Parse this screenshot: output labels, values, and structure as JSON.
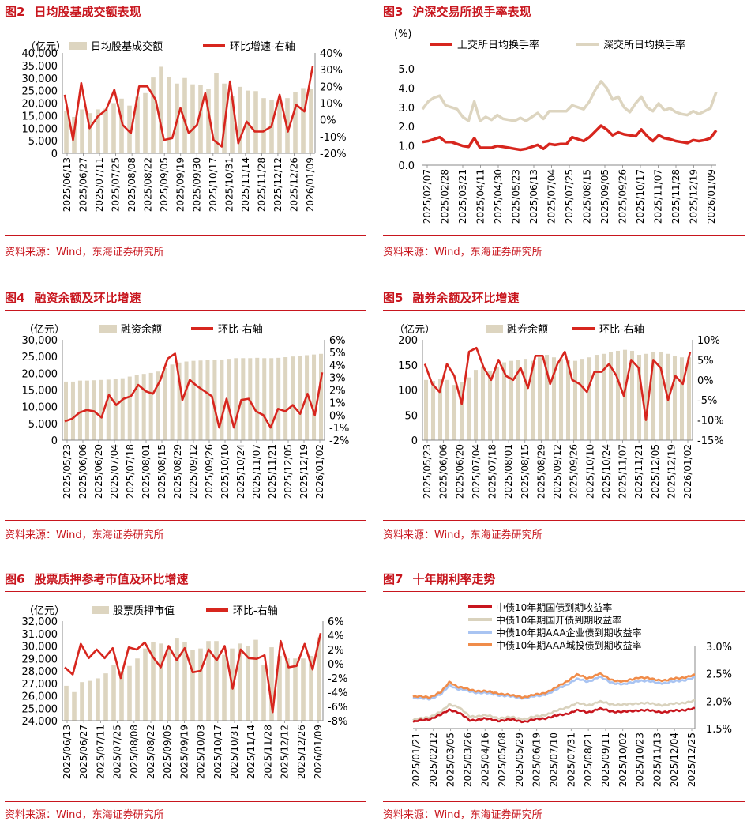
{
  "source_text": "资料来源：Wind，东海证券研究所",
  "colors": {
    "bar": "#ddd5c0",
    "line_red": "#d7261e",
    "line_beige": "#ddd5c0",
    "gov_red": "#c8161e",
    "cdb_beige": "#d9d2bd",
    "corp_blue": "#a9c4f2",
    "city_orange": "#f08c4a",
    "title_red": "#c8161e"
  },
  "chart_data": [
    {
      "id": "fig2",
      "num": "图2",
      "title": "日均股基成交额表现",
      "type": "bar+line",
      "unit_label": "（亿元）",
      "legend": [
        "日均股基成交额",
        "环比增速-右轴"
      ],
      "left_ticks": [
        "40,000",
        "35,000",
        "30,000",
        "25,000",
        "20,000",
        "15,000",
        "10,000",
        "5,000",
        "0"
      ],
      "right_ticks": [
        "40%",
        "30%",
        "20%",
        "10%",
        "0%",
        "-10%",
        "-20%"
      ],
      "ylim": [
        0,
        40000
      ],
      "y2lim": [
        -20,
        40
      ],
      "x_ticks": [
        "2025/06/13",
        "2025/06/27",
        "2025/07/11",
        "2025/07/25",
        "2025/08/08",
        "2025/08/22",
        "2025/09/05",
        "2025/09/19",
        "2025/09/30",
        "2025/10/17",
        "2025/10/31",
        "2025/11/14",
        "2025/11/28",
        "2025/12/12",
        "2025/12/26",
        "2026/01/09"
      ],
      "bars": [
        17000,
        14500,
        17500,
        16000,
        17500,
        17800,
        20000,
        21800,
        19000,
        22500,
        24000,
        30200,
        34500,
        30500,
        27800,
        30000,
        27500,
        27200,
        25800,
        32000,
        27800,
        23000,
        26500,
        25000,
        24800,
        22000,
        21200,
        20800,
        22000,
        24500,
        26000,
        25800
      ],
      "line": [
        15,
        -12,
        22,
        -5,
        2,
        6,
        18,
        -3,
        -8,
        20,
        20,
        12,
        -12,
        -11,
        7,
        -8,
        -3,
        16,
        -12,
        -16,
        23,
        -14,
        -1,
        -7,
        -7,
        -4,
        15,
        -7,
        9,
        5,
        32
      ]
    },
    {
      "id": "fig3",
      "num": "图3",
      "title": "沪深交易所换手率表现",
      "type": "line",
      "unit_label": "(%)",
      "legend": [
        "上交所日均换手率",
        "深交所日均换手率"
      ],
      "left_ticks": [
        "5.0",
        "4.0",
        "3.0",
        "2.0",
        "1.0",
        "0.0"
      ],
      "ylim": [
        0,
        5
      ],
      "x_ticks": [
        "2025/02/07",
        "2025/02/28",
        "2025/03/21",
        "2025/04/11",
        "2025/04/30",
        "2025/05/23",
        "2025/06/13",
        "2025/07/04",
        "2025/07/25",
        "2025/08/15",
        "2025/09/05",
        "2025/09/26",
        "2025/10/17",
        "2025/11/07",
        "2025/11/28",
        "2025/12/19",
        "2026/01/09"
      ],
      "series": [
        {
          "name": "上交所日均换手率",
          "values": [
            1.2,
            1.25,
            1.35,
            1.45,
            1.2,
            1.2,
            1.1,
            1.0,
            0.95,
            1.4,
            0.9,
            0.9,
            0.9,
            1.0,
            0.95,
            0.9,
            0.85,
            0.8,
            0.85,
            0.95,
            1.05,
            0.85,
            1.1,
            1.05,
            1.1,
            1.1,
            1.45,
            1.35,
            1.25,
            1.45,
            1.75,
            2.05,
            1.85,
            1.55,
            1.7,
            1.6,
            1.55,
            1.5,
            1.85,
            1.5,
            1.25,
            1.55,
            1.4,
            1.35,
            1.25,
            1.2,
            1.15,
            1.3,
            1.25,
            1.3,
            1.4,
            1.8
          ]
        },
        {
          "name": "深交所日均换手率",
          "values": [
            2.9,
            3.3,
            3.5,
            3.6,
            3.1,
            3.0,
            2.9,
            2.5,
            2.3,
            3.3,
            2.3,
            2.5,
            2.35,
            2.6,
            2.4,
            2.35,
            2.3,
            2.45,
            2.3,
            2.5,
            2.7,
            2.4,
            2.8,
            2.8,
            2.8,
            2.8,
            3.1,
            3.0,
            2.9,
            3.3,
            3.9,
            4.35,
            4.0,
            3.4,
            3.55,
            3.0,
            2.75,
            3.2,
            3.55,
            3.0,
            2.8,
            3.2,
            2.85,
            2.95,
            2.75,
            2.65,
            2.6,
            2.8,
            2.65,
            2.8,
            2.95,
            3.8
          ]
        }
      ]
    },
    {
      "id": "fig4",
      "num": "图4",
      "title": "融资余额及环比增速",
      "type": "bar+line",
      "unit_label": "（亿元）",
      "legend": [
        "融资余额",
        "环比-右轴"
      ],
      "left_ticks": [
        "30,000",
        "25,000",
        "20,000",
        "15,000",
        "10,000",
        "5,000",
        "0"
      ],
      "right_ticks": [
        "6%",
        "5%",
        "4%",
        "3%",
        "2%",
        "1%",
        "0%",
        "-1%",
        "-2%"
      ],
      "ylim": [
        0,
        30000
      ],
      "y2lim": [
        -2,
        6
      ],
      "x_ticks": [
        "2025/05/23",
        "2025/06/06",
        "2025/06/20",
        "2025/07/04",
        "2025/07/18",
        "2025/08/01",
        "2025/08/15",
        "2025/08/29",
        "2025/09/12",
        "2025/09/26",
        "2025/10/10",
        "2025/10/24",
        "2025/11/07",
        "2025/11/21",
        "2025/12/05",
        "2025/12/19",
        "2026/01/02"
      ],
      "bars": [
        17500,
        17500,
        17800,
        17800,
        17900,
        18000,
        18100,
        18300,
        18500,
        19000,
        19400,
        19800,
        20100,
        20500,
        21500,
        22600,
        23200,
        23500,
        23700,
        23800,
        23900,
        24000,
        24100,
        24300,
        24500,
        24500,
        24500,
        24600,
        24500,
        24500,
        24600,
        24800,
        25000,
        25200,
        25400,
        25600,
        25800
      ],
      "line": [
        -0.5,
        -0.3,
        0.2,
        0.4,
        0.3,
        -0.2,
        1.6,
        0.8,
        1.3,
        1.5,
        2.4,
        1.9,
        1.7,
        2.8,
        4.5,
        4.9,
        1.2,
        2.8,
        2.3,
        1.9,
        1.5,
        -1.0,
        1.3,
        -1.0,
        1.2,
        1.3,
        0.3,
        0.0,
        -1.0,
        0.5,
        0.3,
        0.8,
        0.1,
        1.7,
        0.0,
        3.4
      ]
    },
    {
      "id": "fig5",
      "num": "图5",
      "title": "融券余额及环比增速",
      "type": "bar+line",
      "unit_label": "（亿元）",
      "legend": [
        "融券余额",
        "环比-右轴"
      ],
      "left_ticks": [
        "200",
        "150",
        "100",
        "50",
        "0"
      ],
      "right_ticks": [
        "10%",
        "5%",
        "0%",
        "-5%",
        "-10%",
        "-15%"
      ],
      "ylim": [
        0,
        200
      ],
      "y2lim": [
        -15,
        10
      ],
      "x_ticks": [
        "2025/05/23",
        "2025/06/06",
        "2025/06/20",
        "2025/07/04",
        "2025/07/18",
        "2025/08/01",
        "2025/08/15",
        "2025/08/29",
        "2025/09/12",
        "2025/09/26",
        "2025/10/10",
        "2025/10/24",
        "2025/11/07",
        "2025/11/21",
        "2025/12/05",
        "2025/12/19",
        "2026/01/02"
      ],
      "bars": [
        120,
        118,
        122,
        120,
        110,
        115,
        125,
        140,
        145,
        138,
        145,
        155,
        158,
        160,
        162,
        158,
        165,
        170,
        165,
        162,
        160,
        158,
        162,
        165,
        170,
        172,
        175,
        178,
        180,
        178,
        170,
        172,
        175,
        175,
        172,
        168,
        165,
        165
      ],
      "line": [
        4,
        -1,
        -3,
        4,
        1,
        -6,
        7,
        8,
        3,
        0,
        5,
        1,
        0,
        3,
        -2,
        6,
        6,
        -1,
        4,
        7,
        0,
        -1,
        -3,
        2,
        2,
        4,
        1,
        -4,
        5,
        3,
        -10,
        5,
        3,
        -5,
        1,
        -1,
        7
      ]
    },
    {
      "id": "fig6",
      "num": "图6",
      "title": "股票质押参考市值及环比增速",
      "type": "bar+line",
      "unit_label": "（亿元）",
      "legend": [
        "股票质押市值",
        "环比-右轴"
      ],
      "left_ticks": [
        "32,000",
        "31,000",
        "30,000",
        "29,000",
        "28,000",
        "27,000",
        "26,000",
        "25,000",
        "24,000"
      ],
      "right_ticks": [
        "6%",
        "4%",
        "2%",
        "0%",
        "-2%",
        "-4%",
        "-6%",
        "-8%"
      ],
      "ylim": [
        24000,
        32000
      ],
      "y2lim": [
        -8,
        6
      ],
      "x_ticks": [
        "2025/06/13",
        "2025/06/27",
        "2025/07/11",
        "2025/07/25",
        "2025/08/08",
        "2025/08/22",
        "2025/09/05",
        "2025/09/19",
        "2025/10/03",
        "2025/10/17",
        "2025/10/31",
        "2025/11/14",
        "2025/11/28",
        "2025/12/12",
        "2025/12/26",
        "2026/01/09"
      ],
      "bars": [
        26800,
        26300,
        27100,
        27200,
        27400,
        27800,
        28500,
        28000,
        28400,
        29000,
        29800,
        30300,
        30200,
        30000,
        30600,
        30300,
        29700,
        29800,
        30400,
        30400,
        29300,
        29800,
        30200,
        30000,
        30500,
        28500,
        29900,
        29200,
        29000,
        29000,
        29000,
        29200,
        30700
      ],
      "line": [
        -0.5,
        -1.5,
        2.8,
        0.8,
        2.0,
        0.8,
        2.2,
        -2.0,
        2.3,
        2.0,
        3.0,
        1.0,
        -0.5,
        2.5,
        0.5,
        2.2,
        -1.2,
        -1.0,
        2.0,
        0.5,
        2.5,
        -3.5,
        2.0,
        0.8,
        0.7,
        1.2,
        -6.8,
        3.2,
        -0.5,
        -0.3,
        2.8,
        -0.8,
        4.3
      ]
    },
    {
      "id": "fig7",
      "num": "图7",
      "title": "十年期利率走势",
      "type": "line",
      "legend": [
        "中债10年期国债到期收益率",
        "中债10年期国开债到期收益率",
        "中债10年期AAA企业债到期收益率",
        "中债10年期AAA城投债到期收益率"
      ],
      "right_ticks": [
        "3.0%",
        "2.5%",
        "2.0%",
        "1.5%"
      ],
      "ylim": [
        1.5,
        3.0
      ],
      "x_ticks": [
        "2025/01/21",
        "2025/02/12",
        "2025/03/05",
        "2025/03/26",
        "2025/04/16",
        "2025/05/08",
        "2025/05/29",
        "2025/06/19",
        "2025/07/10",
        "2025/07/31",
        "2025/08/21",
        "2025/09/11",
        "2025/10/02",
        "2025/10/23",
        "2025/11/13",
        "2025/12/04",
        "2025/12/25"
      ],
      "series": [
        {
          "name": "中债10年期国债到期收益率",
          "anchors": [
            [
              0,
              1.62
            ],
            [
              6,
              1.68
            ],
            [
              10,
              1.75
            ],
            [
              13,
              1.85
            ],
            [
              16,
              1.8
            ],
            [
              20,
              1.65
            ],
            [
              25,
              1.68
            ],
            [
              30,
              1.65
            ],
            [
              35,
              1.66
            ],
            [
              40,
              1.63
            ],
            [
              45,
              1.68
            ],
            [
              50,
              1.72
            ],
            [
              55,
              1.78
            ],
            [
              58,
              1.83
            ],
            [
              62,
              1.8
            ],
            [
              66,
              1.86
            ],
            [
              70,
              1.82
            ],
            [
              75,
              1.8
            ],
            [
              80,
              1.84
            ],
            [
              85,
              1.82
            ],
            [
              90,
              1.8
            ],
            [
              95,
              1.84
            ],
            [
              100,
              1.86
            ]
          ]
        },
        {
          "name": "中债10年期国开债到期收益率",
          "anchors": [
            [
              0,
              1.65
            ],
            [
              6,
              1.72
            ],
            [
              10,
              1.8
            ],
            [
              13,
              1.95
            ],
            [
              16,
              1.9
            ],
            [
              20,
              1.72
            ],
            [
              25,
              1.74
            ],
            [
              30,
              1.7
            ],
            [
              35,
              1.7
            ],
            [
              40,
              1.68
            ],
            [
              45,
              1.73
            ],
            [
              50,
              1.8
            ],
            [
              55,
              1.9
            ],
            [
              58,
              1.96
            ],
            [
              62,
              1.93
            ],
            [
              66,
              1.99
            ],
            [
              70,
              1.95
            ],
            [
              75,
              1.93
            ],
            [
              80,
              1.97
            ],
            [
              85,
              1.95
            ],
            [
              90,
              1.93
            ],
            [
              95,
              1.97
            ],
            [
              100,
              2.0
            ]
          ]
        },
        {
          "name": "中债10年期AAA企业债到期收益率",
          "anchors": [
            [
              0,
              2.05
            ],
            [
              6,
              2.05
            ],
            [
              10,
              2.12
            ],
            [
              13,
              2.3
            ],
            [
              16,
              2.22
            ],
            [
              20,
              2.18
            ],
            [
              25,
              2.15
            ],
            [
              30,
              2.12
            ],
            [
              35,
              2.08
            ],
            [
              40,
              2.06
            ],
            [
              45,
              2.1
            ],
            [
              50,
              2.18
            ],
            [
              55,
              2.32
            ],
            [
              58,
              2.4
            ],
            [
              62,
              2.36
            ],
            [
              66,
              2.44
            ],
            [
              70,
              2.35
            ],
            [
              75,
              2.3
            ],
            [
              80,
              2.38
            ],
            [
              85,
              2.35
            ],
            [
              90,
              2.33
            ],
            [
              95,
              2.38
            ],
            [
              100,
              2.42
            ]
          ]
        },
        {
          "name": "中债10年期AAA城投债到期收益率",
          "anchors": [
            [
              0,
              2.08
            ],
            [
              6,
              2.08
            ],
            [
              10,
              2.16
            ],
            [
              13,
              2.36
            ],
            [
              16,
              2.26
            ],
            [
              20,
              2.21
            ],
            [
              25,
              2.18
            ],
            [
              30,
              2.15
            ],
            [
              35,
              2.1
            ],
            [
              40,
              2.08
            ],
            [
              45,
              2.13
            ],
            [
              50,
              2.22
            ],
            [
              55,
              2.38
            ],
            [
              58,
              2.48
            ],
            [
              62,
              2.42
            ],
            [
              66,
              2.5
            ],
            [
              70,
              2.4
            ],
            [
              75,
              2.35
            ],
            [
              80,
              2.44
            ],
            [
              85,
              2.4
            ],
            [
              90,
              2.38
            ],
            [
              95,
              2.43
            ],
            [
              100,
              2.47
            ]
          ]
        }
      ]
    }
  ]
}
